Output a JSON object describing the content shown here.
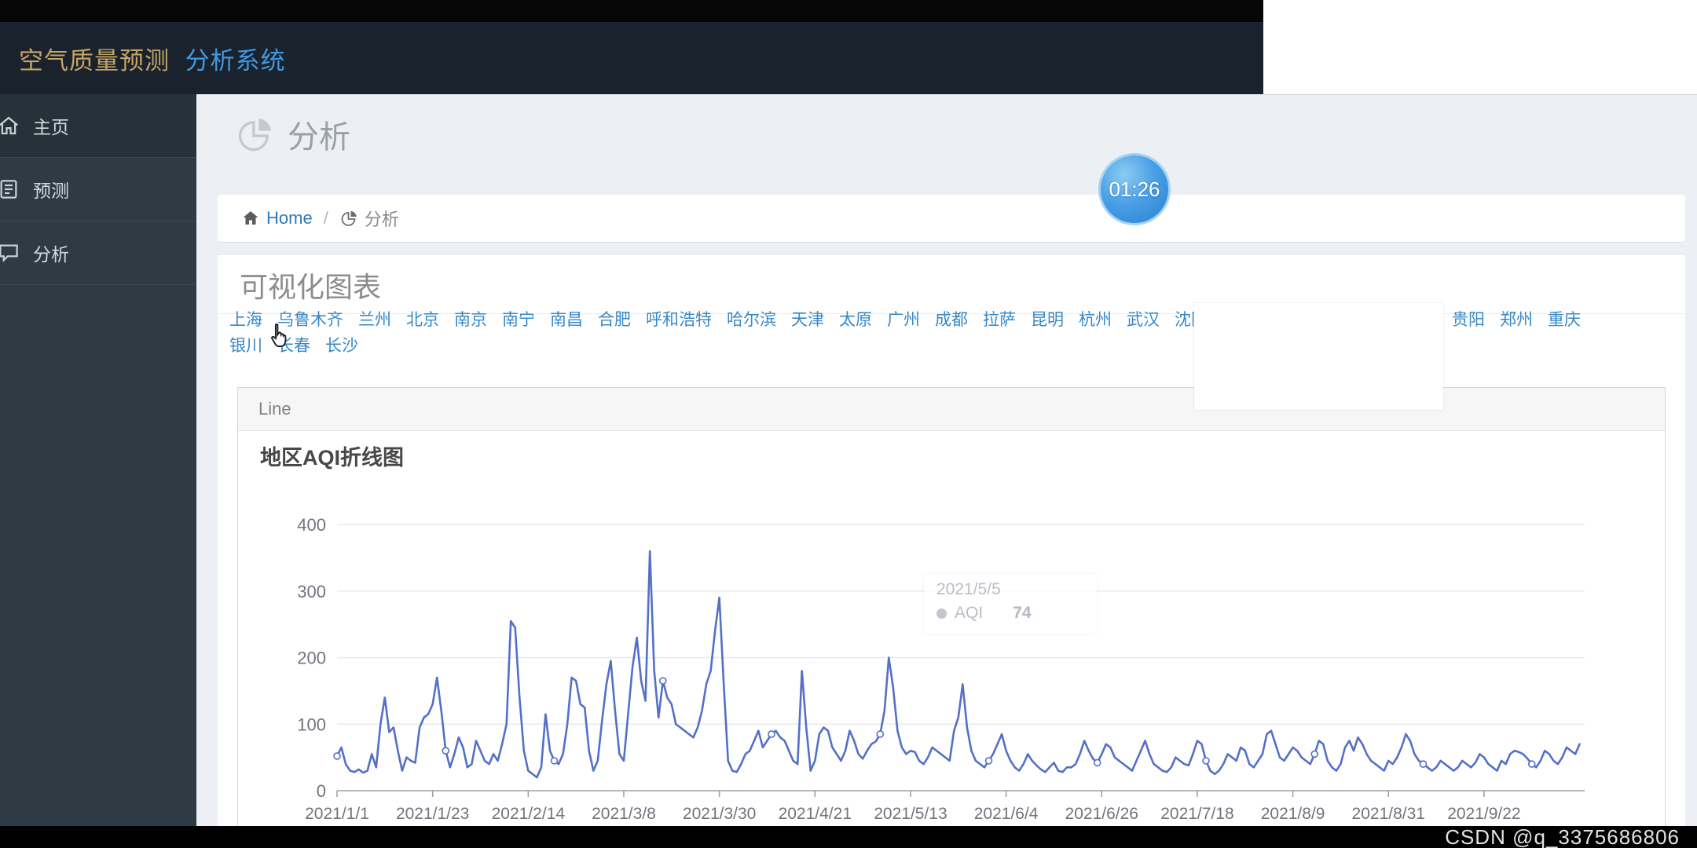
{
  "header": {
    "title_primary": "空气质量预测",
    "title_secondary": "分析系统"
  },
  "sidebar": {
    "items": [
      {
        "label": "主页",
        "icon": "home-icon"
      },
      {
        "label": "预测",
        "icon": "book-icon"
      },
      {
        "label": "分析",
        "icon": "chat-icon"
      }
    ]
  },
  "page": {
    "heading": "分析",
    "breadcrumb": {
      "home": "Home",
      "separator": "/",
      "current": "分析"
    }
  },
  "section": {
    "title": "可视化图表",
    "cities_row1": [
      "上海",
      "乌鲁木齐",
      "兰州",
      "北京",
      "南京",
      "南宁",
      "南昌",
      "合肥",
      "呼和浩特",
      "哈尔滨",
      "天津",
      "太原",
      "广州",
      "成都",
      "拉萨",
      "昆明",
      "杭州",
      "武汉",
      "沈阳"
    ],
    "cities_right": [
      "贵阳",
      "郑州",
      "重庆"
    ],
    "cities_row2": [
      "银川",
      "长春",
      "长沙"
    ]
  },
  "panel": {
    "header": "Line"
  },
  "tooltip": {
    "date": "2021/5/5",
    "series": "AQI",
    "value": "74"
  },
  "overlay": {
    "timer": "01:26",
    "watermark": "CSDN @q_3375686806"
  },
  "colors": {
    "link_blue": "#3788c8",
    "brand_gold": "#c3a565",
    "brand_blue": "#3f9adf",
    "timer_blue": "#3f97e0"
  },
  "chart_data": {
    "type": "line",
    "title": "地区AQI折线图",
    "series_name": "AQI",
    "x_start": "2021/1/1",
    "tick_interval_days": 22,
    "x_tick_labels": [
      "2021/1/1",
      "2021/1/23",
      "2021/2/14",
      "2021/3/8",
      "2021/3/30",
      "2021/4/21",
      "2021/5/13",
      "2021/6/4",
      "2021/6/26",
      "2021/7/18",
      "2021/8/9",
      "2021/8/31",
      "2021/9/22"
    ],
    "y_ticks": [
      0,
      100,
      200,
      300,
      400
    ],
    "ylim": [
      0,
      400
    ],
    "grid": "horizontal",
    "legend": false,
    "line_color": "#5470c6",
    "values": [
      52,
      65,
      40,
      30,
      28,
      32,
      27,
      30,
      55,
      35,
      100,
      140,
      88,
      95,
      60,
      30,
      50,
      45,
      42,
      95,
      110,
      115,
      130,
      170,
      120,
      60,
      35,
      55,
      80,
      65,
      35,
      40,
      75,
      60,
      45,
      40,
      55,
      45,
      70,
      100,
      255,
      245,
      140,
      60,
      30,
      25,
      20,
      35,
      115,
      60,
      45,
      40,
      55,
      100,
      170,
      165,
      130,
      125,
      60,
      30,
      45,
      105,
      160,
      195,
      120,
      55,
      45,
      115,
      185,
      230,
      165,
      135,
      360,
      180,
      110,
      165,
      140,
      130,
      100,
      95,
      90,
      85,
      80,
      95,
      120,
      160,
      180,
      240,
      290,
      160,
      45,
      30,
      28,
      40,
      55,
      60,
      75,
      90,
      65,
      75,
      85,
      90,
      80,
      75,
      60,
      45,
      40,
      180,
      95,
      30,
      45,
      85,
      95,
      90,
      65,
      55,
      45,
      60,
      90,
      75,
      55,
      48,
      60,
      70,
      74,
      85,
      120,
      200,
      155,
      90,
      65,
      55,
      60,
      58,
      45,
      40,
      50,
      65,
      60,
      55,
      50,
      45,
      90,
      110,
      160,
      95,
      60,
      45,
      40,
      35,
      45,
      55,
      70,
      85,
      60,
      45,
      35,
      30,
      40,
      55,
      45,
      38,
      32,
      28,
      35,
      42,
      30,
      28,
      35,
      35,
      40,
      55,
      75,
      60,
      48,
      42,
      55,
      70,
      65,
      50,
      45,
      40,
      35,
      30,
      45,
      60,
      75,
      55,
      40,
      35,
      30,
      28,
      35,
      50,
      45,
      40,
      38,
      55,
      75,
      70,
      45,
      30,
      25,
      30,
      40,
      55,
      50,
      45,
      65,
      60,
      40,
      35,
      45,
      55,
      85,
      90,
      70,
      50,
      45,
      55,
      65,
      60,
      50,
      45,
      40,
      55,
      75,
      70,
      45,
      35,
      30,
      40,
      65,
      75,
      60,
      80,
      70,
      55,
      45,
      40,
      35,
      30,
      45,
      40,
      50,
      65,
      85,
      75,
      55,
      45,
      40,
      35,
      30,
      35,
      45,
      40,
      35,
      30,
      35,
      45,
      40,
      35,
      42,
      55,
      50,
      40,
      35,
      30,
      45,
      40,
      55,
      60,
      58,
      55,
      48,
      40,
      35,
      45,
      60,
      55,
      45,
      40,
      50,
      65,
      60,
      55,
      70
    ]
  }
}
